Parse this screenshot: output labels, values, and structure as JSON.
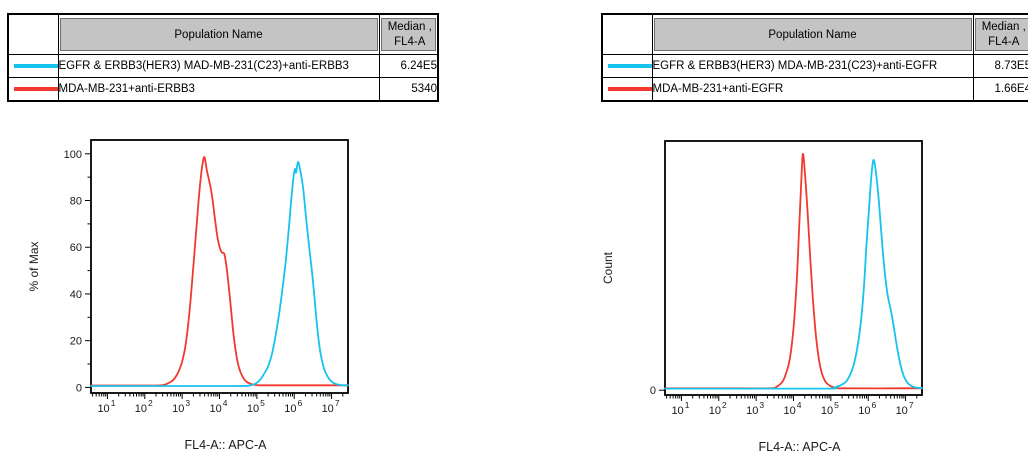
{
  "colors": {
    "cyan": "#15C3EE",
    "red": "#F2392E",
    "table_header_bg": "#C4C4C4",
    "axis": "#000000"
  },
  "tables": [
    {
      "header": {
        "population": "Population Name",
        "median_line1": "Median ,",
        "median_line2": "FL4-A"
      },
      "rows": [
        {
          "swatch": "cyan",
          "name": "EGFR & ERBB3(HER3) MAD-MB-231(C23)+anti-ERBB3",
          "median": "6.24E5"
        },
        {
          "swatch": "red",
          "name": "MDA-MB-231+anti-ERBB3",
          "median": "5340"
        }
      ]
    },
    {
      "header": {
        "population": "Population Name",
        "median_line1": "Median ,",
        "median_line2": "FL4-A"
      },
      "rows": [
        {
          "swatch": "cyan",
          "name": "EGFR & ERBB3(HER3) MDA-MB-231(C23)+anti-EGFR",
          "median": "8.73E5"
        },
        {
          "swatch": "red",
          "name": "MDA-MB-231+anti-EGFR",
          "median": "1.66E4"
        }
      ]
    }
  ],
  "chart_data": [
    {
      "type": "line",
      "title": "",
      "xlabel": "FL4-A:: APC-A",
      "ylabel": "% of Max",
      "x_scale": "log10",
      "x_range_log10": [
        0.56,
        7.44
      ],
      "x_tick_decades": [
        1,
        2,
        3,
        4,
        5,
        6,
        7
      ],
      "y_range": [
        -2.4,
        105.9
      ],
      "y_ticks": [
        0,
        20,
        40,
        60,
        80,
        100
      ],
      "y_minor_ticks": [
        10,
        30,
        50,
        70,
        90
      ],
      "grid": false,
      "legend_position": "none",
      "series": [
        {
          "name": "EGFR & ERBB3(HER3) MAD-MB-231(C23)+anti-ERBB3",
          "color_key": "cyan",
          "color": "#15C3EE",
          "median_fl4a": "6.24E5",
          "points_log10x_pct": [
            [
              0.56,
              0.6
            ],
            [
              3.0,
              0.6
            ],
            [
              4.3,
              0.6
            ],
            [
              4.75,
              0.7
            ],
            [
              4.9,
              1.2
            ],
            [
              5.0,
              2
            ],
            [
              5.1,
              3.5
            ],
            [
              5.2,
              6
            ],
            [
              5.3,
              9
            ],
            [
              5.4,
              14
            ],
            [
              5.5,
              22
            ],
            [
              5.6,
              32
            ],
            [
              5.7,
              44
            ],
            [
              5.78,
              55
            ],
            [
              5.85,
              67
            ],
            [
              5.92,
              80
            ],
            [
              5.98,
              90
            ],
            [
              6.02,
              93.5
            ],
            [
              6.05,
              92
            ],
            [
              6.1,
              96.5
            ],
            [
              6.16,
              93
            ],
            [
              6.24,
              85
            ],
            [
              6.32,
              72
            ],
            [
              6.4,
              60
            ],
            [
              6.48,
              49
            ],
            [
              6.55,
              37
            ],
            [
              6.62,
              25
            ],
            [
              6.7,
              15
            ],
            [
              6.8,
              8
            ],
            [
              6.9,
              4.5
            ],
            [
              7.0,
              2.5
            ],
            [
              7.12,
              1.4
            ],
            [
              7.25,
              1
            ],
            [
              7.44,
              0.9
            ]
          ]
        },
        {
          "name": "MDA-MB-231+anti-ERBB3",
          "color_key": "red",
          "color": "#F2392E",
          "median_fl4a": "5340",
          "points_log10x_pct": [
            [
              0.56,
              0.8
            ],
            [
              2.0,
              0.8
            ],
            [
              2.45,
              0.9
            ],
            [
              2.6,
              1.6
            ],
            [
              2.75,
              3
            ],
            [
              2.88,
              6
            ],
            [
              3.0,
              11
            ],
            [
              3.1,
              19
            ],
            [
              3.2,
              33
            ],
            [
              3.3,
              52
            ],
            [
              3.4,
              72
            ],
            [
              3.48,
              87
            ],
            [
              3.55,
              96
            ],
            [
              3.6,
              98.5
            ],
            [
              3.66,
              93
            ],
            [
              3.73,
              88
            ],
            [
              3.8,
              82
            ],
            [
              3.88,
              72
            ],
            [
              3.96,
              63
            ],
            [
              4.05,
              58
            ],
            [
              4.13,
              57
            ],
            [
              4.2,
              50
            ],
            [
              4.28,
              38
            ],
            [
              4.36,
              25
            ],
            [
              4.44,
              15
            ],
            [
              4.52,
              8.5
            ],
            [
              4.62,
              4.5
            ],
            [
              4.72,
              2.5
            ],
            [
              4.85,
              1.4
            ],
            [
              5.0,
              1
            ],
            [
              5.3,
              0.9
            ],
            [
              7.44,
              0.9
            ]
          ]
        }
      ]
    },
    {
      "type": "line",
      "title": "",
      "xlabel": "FL4-A:: APC-A",
      "ylabel": "Count",
      "x_scale": "log10",
      "x_range_log10": [
        0.56,
        7.44
      ],
      "x_tick_decades": [
        1,
        2,
        3,
        4,
        5,
        6,
        7
      ],
      "y_range": [
        -2.0,
        104.5
      ],
      "y_ticks": [
        0
      ],
      "y_minor_ticks": [],
      "grid": false,
      "legend_position": "none",
      "series": [
        {
          "name": "EGFR & ERBB3(HER3) MDA-MB-231(C23)+anti-EGFR",
          "color_key": "cyan",
          "color": "#15C3EE",
          "median_fl4a": "8.73E5",
          "points_log10x_pct": [
            [
              0.56,
              0.7
            ],
            [
              3.0,
              0.7
            ],
            [
              4.95,
              0.7
            ],
            [
              5.1,
              1.2
            ],
            [
              5.25,
              2
            ],
            [
              5.4,
              3.5
            ],
            [
              5.5,
              6
            ],
            [
              5.6,
              10
            ],
            [
              5.7,
              17
            ],
            [
              5.8,
              28
            ],
            [
              5.88,
              42
            ],
            [
              5.95,
              60
            ],
            [
              6.02,
              76
            ],
            [
              6.08,
              89
            ],
            [
              6.14,
              96.5
            ],
            [
              6.2,
              92
            ],
            [
              6.28,
              80
            ],
            [
              6.36,
              64
            ],
            [
              6.44,
              50
            ],
            [
              6.52,
              40
            ],
            [
              6.6,
              34
            ],
            [
              6.68,
              27
            ],
            [
              6.77,
              18
            ],
            [
              6.86,
              11
            ],
            [
              6.95,
              6
            ],
            [
              7.06,
              3
            ],
            [
              7.18,
              1.6
            ],
            [
              7.32,
              1
            ],
            [
              7.44,
              0.9
            ]
          ]
        },
        {
          "name": "MDA-MB-231+anti-EGFR",
          "color_key": "red",
          "color": "#F2392E",
          "median_fl4a": "1.66E4",
          "points_log10x_pct": [
            [
              0.56,
              0.8
            ],
            [
              2.5,
              0.8
            ],
            [
              3.4,
              0.8
            ],
            [
              3.55,
              1.5
            ],
            [
              3.7,
              3.5
            ],
            [
              3.8,
              7
            ],
            [
              3.9,
              13
            ],
            [
              4.0,
              26
            ],
            [
              4.08,
              44
            ],
            [
              4.14,
              64
            ],
            [
              4.2,
              85
            ],
            [
              4.25,
              99
            ],
            [
              4.31,
              90
            ],
            [
              4.38,
              74
            ],
            [
              4.45,
              55
            ],
            [
              4.52,
              38
            ],
            [
              4.6,
              23
            ],
            [
              4.68,
              13
            ],
            [
              4.76,
              7
            ],
            [
              4.86,
              3.5
            ],
            [
              4.98,
              1.8
            ],
            [
              5.12,
              1
            ],
            [
              5.35,
              0.8
            ],
            [
              7.44,
              0.8
            ]
          ]
        }
      ]
    }
  ]
}
